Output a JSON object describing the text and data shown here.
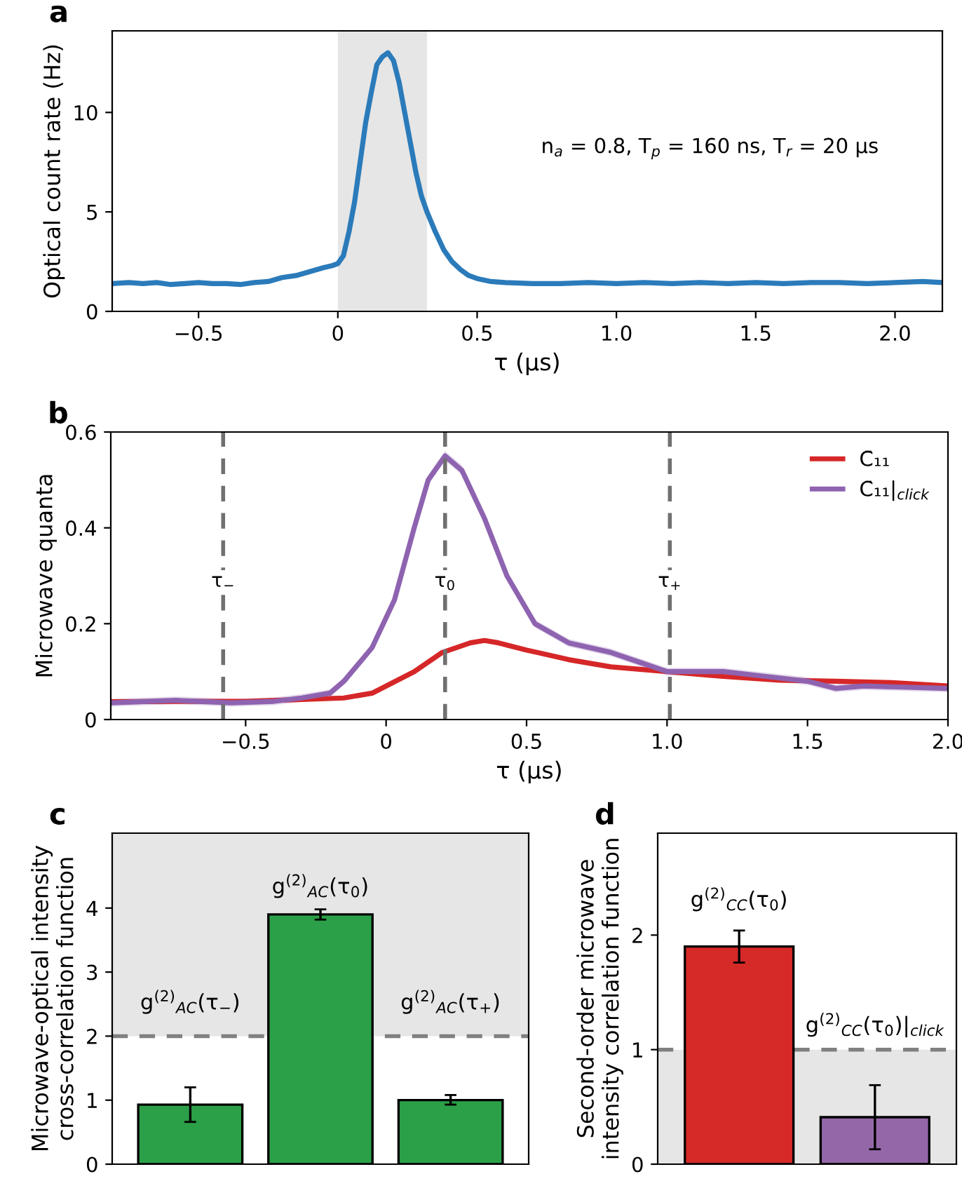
{
  "chart_data": [
    {
      "type": "line",
      "title": "a",
      "xlabel": "τ (μs)",
      "ylabel": "Optical count rate (Hz)",
      "x": [
        -0.81,
        -0.75,
        -0.7,
        -0.65,
        -0.6,
        -0.55,
        -0.5,
        -0.45,
        -0.4,
        -0.35,
        -0.3,
        -0.25,
        -0.2,
        -0.15,
        -0.1,
        -0.05,
        -0.02,
        0.0,
        0.02,
        0.04,
        0.06,
        0.08,
        0.1,
        0.12,
        0.14,
        0.16,
        0.18,
        0.2,
        0.22,
        0.24,
        0.26,
        0.28,
        0.3,
        0.32,
        0.35,
        0.38,
        0.41,
        0.44,
        0.47,
        0.5,
        0.55,
        0.6,
        0.7,
        0.8,
        0.9,
        1.0,
        1.1,
        1.2,
        1.3,
        1.4,
        1.5,
        1.6,
        1.7,
        1.8,
        1.9,
        2.0,
        2.1,
        2.17
      ],
      "series": [
        {
          "color": "#2b7bba",
          "values": [
            1.4,
            1.45,
            1.4,
            1.45,
            1.35,
            1.4,
            1.45,
            1.4,
            1.4,
            1.35,
            1.45,
            1.5,
            1.7,
            1.8,
            2.0,
            2.2,
            2.3,
            2.4,
            2.8,
            4.0,
            5.5,
            7.5,
            9.5,
            11.0,
            12.4,
            12.8,
            13.0,
            12.6,
            11.5,
            10.0,
            8.5,
            7.0,
            5.8,
            5.0,
            4.0,
            3.1,
            2.5,
            2.1,
            1.8,
            1.65,
            1.5,
            1.45,
            1.4,
            1.4,
            1.45,
            1.4,
            1.45,
            1.4,
            1.45,
            1.4,
            1.45,
            1.4,
            1.45,
            1.45,
            1.4,
            1.45,
            1.5,
            1.45
          ]
        }
      ],
      "bands": [
        {
          "axis": "x",
          "from": 0.0,
          "to": 0.32,
          "color": "#e6e6e6"
        }
      ],
      "annotations": [
        "n$_{a}$ = 0.8, T$_{p}$ = 160 ns, T$_{r}$ = 20 μs"
      ],
      "xlim": [
        -0.81,
        2.17
      ],
      "ylim": [
        0,
        14.1
      ],
      "xticks": [
        {
          "value": -0.5,
          "label": "−0.5"
        },
        0,
        0.5,
        {
          "value": 1,
          "label": "1.0"
        },
        1.5,
        {
          "value": 2,
          "label": "2.0"
        }
      ],
      "yticks": [
        0,
        5,
        10
      ],
      "legend": false
    },
    {
      "type": "line",
      "title": "b",
      "xlabel": "τ (μs)",
      "ylabel": "Microwave quanta",
      "series": [
        {
          "name": "C̄₁₁",
          "color": "#d62728",
          "x": [
            -0.98,
            -0.7,
            -0.5,
            -0.3,
            -0.15,
            -0.05,
            0.0,
            0.1,
            0.2,
            0.3,
            0.35,
            0.4,
            0.5,
            0.65,
            0.8,
            1.0,
            1.2,
            1.4,
            1.6,
            1.8,
            2.0
          ],
          "values": [
            0.037,
            0.038,
            0.038,
            0.042,
            0.045,
            0.055,
            0.07,
            0.1,
            0.14,
            0.16,
            0.165,
            0.16,
            0.145,
            0.125,
            0.11,
            0.1,
            0.09,
            0.082,
            0.08,
            0.077,
            0.07
          ]
        },
        {
          "name": "C̄₁₁|$_{click}$",
          "color": "#8e63b0",
          "x": [
            -0.98,
            -0.75,
            -0.55,
            -0.4,
            -0.3,
            -0.2,
            -0.15,
            -0.05,
            0.03,
            0.1,
            0.15,
            0.21,
            0.27,
            0.35,
            0.43,
            0.53,
            0.65,
            0.8,
            0.9,
            1.0,
            1.2,
            1.35,
            1.5,
            1.6,
            1.7,
            2.0
          ],
          "values": [
            0.035,
            0.04,
            0.035,
            0.038,
            0.045,
            0.055,
            0.08,
            0.15,
            0.25,
            0.4,
            0.5,
            0.55,
            0.52,
            0.42,
            0.3,
            0.2,
            0.16,
            0.14,
            0.12,
            0.1,
            0.1,
            0.09,
            0.08,
            0.065,
            0.07,
            0.065
          ],
          "lower": [
            0.027,
            0.032,
            0.027,
            0.03,
            0.037,
            0.047,
            0.072,
            0.142,
            0.242,
            0.392,
            0.49,
            0.54,
            0.51,
            0.41,
            0.292,
            0.192,
            0.152,
            0.132,
            0.112,
            0.092,
            0.092,
            0.082,
            0.072,
            0.057,
            0.062,
            0.057
          ],
          "upper": [
            0.043,
            0.048,
            0.043,
            0.046,
            0.053,
            0.063,
            0.088,
            0.158,
            0.258,
            0.408,
            0.51,
            0.56,
            0.53,
            0.43,
            0.308,
            0.208,
            0.168,
            0.148,
            0.128,
            0.108,
            0.108,
            0.098,
            0.088,
            0.073,
            0.078,
            0.073
          ]
        }
      ],
      "ref_lines": [
        {
          "axis": "x",
          "value": -0.58,
          "label": "τ$_{−}$",
          "color": "#707070",
          "line_style": "dashed"
        },
        {
          "axis": "x",
          "value": 0.21,
          "label": "τ$_{0}$",
          "color": "#707070",
          "line_style": "dashed"
        },
        {
          "axis": "x",
          "value": 1.01,
          "label": "τ$_{+}$",
          "color": "#707070",
          "line_style": "dashed"
        }
      ],
      "xlim": [
        -0.98,
        2.0
      ],
      "ylim": [
        0,
        0.6
      ],
      "xticks": [
        {
          "value": -0.5,
          "label": "−0.5"
        },
        0,
        0.5,
        {
          "value": 1,
          "label": "1.0"
        },
        1.5,
        {
          "value": 2,
          "label": "2.0"
        }
      ],
      "yticks": [
        0,
        0.2,
        0.4,
        0.6
      ],
      "legend": "top right"
    },
    {
      "type": "bar",
      "title": "c",
      "ylabel": "Microwave-optical intensity\ncross-correlation function",
      "categories": [
        null,
        null,
        null
      ],
      "values": [
        0.93,
        3.9,
        1.0
      ],
      "colors": [
        "#2ca048",
        "#2ca048",
        "#2ca048"
      ],
      "errors": [
        [
          0.66,
          1.2
        ],
        [
          3.82,
          3.98
        ],
        [
          0.93,
          1.08
        ]
      ],
      "bands": [
        {
          "axis": "y",
          "from": 2,
          "to": 5.17,
          "color": "#e6e6e6"
        }
      ],
      "ref_lines": [
        {
          "axis": "y",
          "value": 2,
          "color": "#808080",
          "line_style": "dashed"
        }
      ],
      "annotations": [
        "g$^{(2)}$$_{AC}$(τ$_{−}$)",
        "g$^{(2)}$$_{AC}$(τ$_{0}$)",
        "g$^{(2)}$$_{AC}$(τ$_{+}$)"
      ],
      "ylim": [
        0,
        5.17
      ],
      "yticks": [
        0,
        1,
        2,
        3,
        4
      ],
      "legend": false
    },
    {
      "type": "bar",
      "title": "d",
      "ylabel": "Second-order microwave\nintensity correlation function",
      "categories": [
        null,
        null
      ],
      "values": [
        1.9,
        0.41
      ],
      "colors": [
        "#d62a28",
        "#9467a9"
      ],
      "errors": [
        [
          1.76,
          2.04
        ],
        [
          0.13,
          0.69
        ]
      ],
      "bands": [
        {
          "axis": "y",
          "from": 0,
          "to": 1,
          "color": "#e6e6e6"
        }
      ],
      "ref_lines": [
        {
          "axis": "y",
          "value": 1,
          "color": "#808080",
          "line_style": "dashed"
        }
      ],
      "annotations": [
        "g$^{(2)}$$_{CC}$(τ$_{0}$)",
        "g$^{(2)}$$_{CC}$(τ$_{0}$)|$_{click}$"
      ],
      "ylim": [
        0,
        2.89
      ],
      "yticks": [
        0,
        1,
        2
      ],
      "legend": false
    }
  ]
}
